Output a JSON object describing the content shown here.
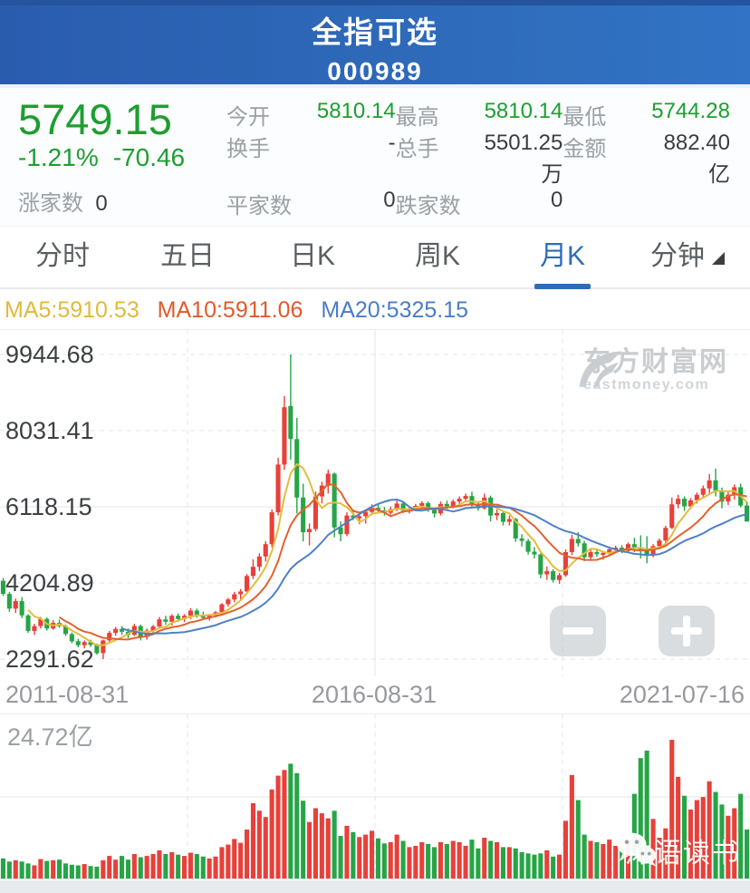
{
  "header": {
    "title": "全指可选",
    "code": "000989"
  },
  "quote": {
    "price": "5749.15",
    "change_pct": "-1.21%",
    "change_val": "-70.46",
    "open_label": "今开",
    "open": "5810.14",
    "high_label": "最高",
    "high": "5810.14",
    "low_label": "最低",
    "low": "5744.28",
    "turnover_label": "换手",
    "turnover": "-",
    "volume_label": "总手",
    "volume": "5501.25万",
    "amount_label": "金额",
    "amount": "882.40亿",
    "up_label": "涨家数",
    "up": "0",
    "flat_label": "平家数",
    "flat": "0",
    "down_label": "跌家数",
    "down": "0"
  },
  "tabs": {
    "items": [
      "分时",
      "五日",
      "日K",
      "周K",
      "月K",
      "分钟"
    ],
    "active": "月K"
  },
  "ma": {
    "ma5": "MA5:5910.53",
    "ma10": "MA10:5911.06",
    "ma20": "MA20:5325.15"
  },
  "watermark": {
    "brand": "东方财富网",
    "domain": "eastmoney.com"
  },
  "social": {
    "text": "沐语读书"
  },
  "chart_data": {
    "type": "candlestick",
    "title": "全指可选 000989 月K",
    "y_axis": [
      9944.68,
      8031.41,
      6118.15,
      4204.89,
      2291.62
    ],
    "x_axis": [
      "2011-08-31",
      "2016-08-31",
      "2021-07-16"
    ],
    "x_grid": [
      207,
      414,
      621
    ],
    "vol_max": 24.72,
    "vol_max_label": "24.72亿",
    "colors": {
      "up": "#e8403a",
      "down": "#26a546",
      "ma5": "#e3bc3f",
      "ma10": "#e2622f",
      "ma20": "#5080c6"
    },
    "candles": [
      [
        4260,
        4330,
        3880,
        3930,
        3.2
      ],
      [
        3930,
        3980,
        3480,
        3560,
        2.7
      ],
      [
        3560,
        3810,
        3450,
        3750,
        2.9
      ],
      [
        3750,
        3850,
        3320,
        3390,
        2.7
      ],
      [
        3390,
        3420,
        2950,
        3000,
        2.4
      ],
      [
        3000,
        3180,
        2900,
        3120,
        2.1
      ],
      [
        3120,
        3350,
        3060,
        3300,
        3.1
      ],
      [
        3300,
        3340,
        3010,
        3060,
        2.8
      ],
      [
        3060,
        3270,
        3030,
        3200,
        2.9
      ],
      [
        3200,
        3280,
        3080,
        3120,
        3.0
      ],
      [
        3120,
        3160,
        2870,
        2920,
        2.4
      ],
      [
        2920,
        2960,
        2690,
        2740,
        2.2
      ],
      [
        2740,
        2800,
        2590,
        2640,
        2.1
      ],
      [
        2640,
        2760,
        2560,
        2720,
        2.3
      ],
      [
        2720,
        2780,
        2600,
        2650,
        2.0
      ],
      [
        2650,
        2680,
        2400,
        2440,
        1.9
      ],
      [
        2440,
        2780,
        2292,
        2760,
        2.9
      ],
      [
        2760,
        3000,
        2720,
        2950,
        3.6
      ],
      [
        2950,
        3100,
        2880,
        3050,
        3.0
      ],
      [
        3050,
        3120,
        2900,
        2980,
        3.6
      ],
      [
        2980,
        3060,
        2820,
        2900,
        3.0
      ],
      [
        2900,
        3180,
        2870,
        3120,
        3.9
      ],
      [
        3120,
        3160,
        2760,
        2850,
        3.4
      ],
      [
        2850,
        3060,
        2780,
        3010,
        3.6
      ],
      [
        3010,
        3150,
        2940,
        3110,
        3.9
      ],
      [
        3110,
        3350,
        3060,
        3290,
        4.5
      ],
      [
        3290,
        3380,
        3150,
        3230,
        3.9
      ],
      [
        3230,
        3420,
        3140,
        3380,
        4.2
      ],
      [
        3380,
        3440,
        3230,
        3300,
        3.8
      ],
      [
        3300,
        3420,
        3220,
        3380,
        3.6
      ],
      [
        3380,
        3570,
        3300,
        3510,
        4.1
      ],
      [
        3510,
        3560,
        3330,
        3400,
        3.9
      ],
      [
        3400,
        3480,
        3270,
        3330,
        3.5
      ],
      [
        3330,
        3420,
        3260,
        3390,
        3.2
      ],
      [
        3390,
        3500,
        3340,
        3470,
        3.5
      ],
      [
        3470,
        3700,
        3420,
        3670,
        5.0
      ],
      [
        3670,
        3830,
        3610,
        3790,
        5.4
      ],
      [
        3790,
        3980,
        3720,
        3920,
        6.3
      ],
      [
        3920,
        4050,
        3790,
        3990,
        5.7
      ],
      [
        3990,
        4430,
        3940,
        4380,
        7.8
      ],
      [
        4380,
        4800,
        4300,
        4610,
        12.0
      ],
      [
        4610,
        4950,
        4500,
        4870,
        10.8
      ],
      [
        4870,
        5250,
        4740,
        5180,
        9.8
      ],
      [
        5180,
        6050,
        5100,
        5980,
        14.2
      ],
      [
        5980,
        7350,
        5900,
        7180,
        16.4
      ],
      [
        7180,
        8900,
        7050,
        8620,
        17.3
      ],
      [
        8650,
        9944,
        7300,
        7820,
        18.3
      ],
      [
        7820,
        8350,
        5950,
        6350,
        16.8
      ],
      [
        6350,
        6700,
        5250,
        5480,
        12.4
      ],
      [
        5480,
        5700,
        5150,
        5560,
        9.0
      ],
      [
        5560,
        6500,
        5500,
        6380,
        11.2
      ],
      [
        6380,
        6750,
        6200,
        6650,
        10.4
      ],
      [
        6650,
        7050,
        6450,
        6950,
        9.6
      ],
      [
        6950,
        6980,
        5350,
        5600,
        10.8
      ],
      [
        5600,
        5750,
        5250,
        5430,
        6.8
      ],
      [
        5430,
        5980,
        5380,
        5900,
        8.4
      ],
      [
        5900,
        6050,
        5780,
        5860,
        7.4
      ],
      [
        5860,
        5950,
        5680,
        5880,
        6.6
      ],
      [
        5880,
        6050,
        5700,
        5990,
        7.0
      ],
      [
        5990,
        6180,
        5920,
        6090,
        7.6
      ],
      [
        6090,
        6180,
        5960,
        6030,
        6.4
      ],
      [
        6030,
        6110,
        5900,
        5970,
        5.6
      ],
      [
        5970,
        6120,
        5920,
        6060,
        5.8
      ],
      [
        6060,
        6280,
        6010,
        6200,
        7.0
      ],
      [
        6200,
        6240,
        5960,
        6020,
        6.0
      ],
      [
        6020,
        6120,
        5950,
        6060,
        5.0
      ],
      [
        6060,
        6190,
        6010,
        6140,
        5.2
      ],
      [
        6140,
        6260,
        6080,
        6210,
        5.8
      ],
      [
        6210,
        6250,
        5990,
        6040,
        5.5
      ],
      [
        6040,
        6090,
        5850,
        5950,
        5.0
      ],
      [
        5950,
        6250,
        5900,
        6190,
        5.8
      ],
      [
        6190,
        6270,
        6060,
        6130,
        5.5
      ],
      [
        6130,
        6300,
        6080,
        6250,
        6.0
      ],
      [
        6250,
        6380,
        6180,
        6320,
        5.8
      ],
      [
        6320,
        6450,
        6240,
        6390,
        5.2
      ],
      [
        6390,
        6500,
        6090,
        6160,
        6.2
      ],
      [
        6160,
        6230,
        6020,
        6080,
        4.8
      ],
      [
        6080,
        6450,
        6050,
        6350,
        6.5
      ],
      [
        6350,
        6400,
        5750,
        5900,
        6.0
      ],
      [
        5900,
        6060,
        5780,
        5960,
        5.8
      ],
      [
        5960,
        6000,
        5650,
        5740,
        5.0
      ],
      [
        5740,
        5900,
        5650,
        5810,
        5.0
      ],
      [
        5810,
        5840,
        5240,
        5320,
        4.8
      ],
      [
        5320,
        5430,
        5120,
        5260,
        4.2
      ],
      [
        5260,
        5310,
        4920,
        4990,
        4.0
      ],
      [
        4990,
        5110,
        4820,
        4920,
        3.8
      ],
      [
        4920,
        4950,
        4320,
        4420,
        4.0
      ],
      [
        4420,
        4620,
        4280,
        4500,
        4.5
      ],
      [
        4500,
        4550,
        4220,
        4280,
        3.5
      ],
      [
        4280,
        4460,
        4180,
        4400,
        3.8
      ],
      [
        4400,
        5050,
        4360,
        4980,
        9.2
      ],
      [
        4980,
        5420,
        4900,
        5310,
        16.5
      ],
      [
        5310,
        5480,
        5120,
        5200,
        12.5
      ],
      [
        5200,
        5260,
        4750,
        4850,
        7.0
      ],
      [
        4850,
        5040,
        4760,
        4980,
        6.0
      ],
      [
        4980,
        5060,
        4860,
        4930,
        5.8
      ],
      [
        4930,
        5010,
        4790,
        4960,
        5.5
      ],
      [
        4960,
        5120,
        4900,
        5050,
        6.2
      ],
      [
        5050,
        5140,
        4960,
        5090,
        5.2
      ],
      [
        5090,
        5150,
        4950,
        5010,
        5.0
      ],
      [
        5010,
        5220,
        4970,
        5180,
        6.0
      ],
      [
        5180,
        5340,
        4980,
        5090,
        13.5
      ],
      [
        5090,
        5400,
        4820,
        5060,
        19.2
      ],
      [
        5060,
        5380,
        4700,
        4900,
        20.4
      ],
      [
        4900,
        5180,
        4850,
        5130,
        9.5
      ],
      [
        5130,
        5320,
        5060,
        5270,
        6.5
      ],
      [
        5270,
        5640,
        5200,
        5590,
        8.0
      ],
      [
        5590,
        6350,
        5560,
        6180,
        22.1
      ],
      [
        6180,
        6420,
        6080,
        6320,
        16.2
      ],
      [
        6320,
        6380,
        6010,
        6130,
        13.2
      ],
      [
        6130,
        6340,
        6060,
        6280,
        11.0
      ],
      [
        6280,
        6480,
        6200,
        6420,
        12.5
      ],
      [
        6420,
        6650,
        6330,
        6580,
        13.0
      ],
      [
        6580,
        6940,
        6450,
        6780,
        15.5
      ],
      [
        6780,
        7080,
        6380,
        6520,
        13.8
      ],
      [
        6520,
        6600,
        6080,
        6250,
        11.8
      ],
      [
        6250,
        6500,
        6160,
        6420,
        10.0
      ],
      [
        6420,
        6680,
        6300,
        6610,
        11.2
      ],
      [
        6610,
        6700,
        6100,
        6150,
        13.5
      ],
      [
        6150,
        6250,
        5744,
        5749.15,
        7.8
      ]
    ]
  }
}
